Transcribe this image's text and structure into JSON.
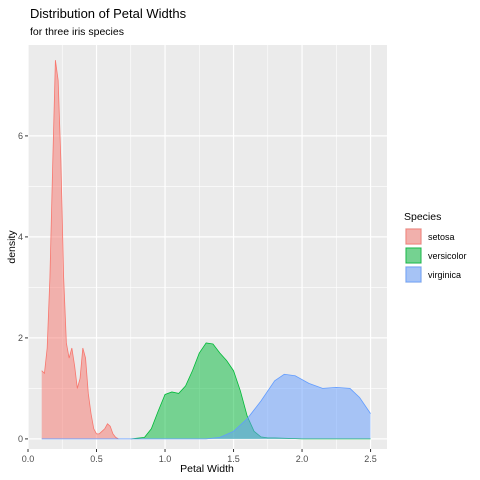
{
  "chart_data": {
    "type": "area",
    "title": "Distribution of Petal Widths",
    "subtitle": "for three iris species",
    "xlabel": "Petal Width",
    "ylabel": "density",
    "xlim": [
      0.0,
      2.62
    ],
    "ylim": [
      -0.2,
      7.8
    ],
    "x_ticks": [
      0.0,
      0.5,
      1.0,
      1.5,
      2.0,
      2.5
    ],
    "x_tick_labels": [
      "0.0",
      "0.5",
      "1.0",
      "1.5",
      "2.0",
      "2.5"
    ],
    "y_ticks": [
      0,
      2,
      4,
      6
    ],
    "y_tick_labels": [
      "0",
      "2",
      "4",
      "6"
    ],
    "grid": true,
    "background": "#ebebeb",
    "legend": {
      "title": "Species",
      "placement": "right"
    },
    "series": [
      {
        "name": "setosa",
        "fill": "#f8766d",
        "points": [
          [
            0.1,
            1.35
          ],
          [
            0.12,
            1.3
          ],
          [
            0.14,
            1.8
          ],
          [
            0.16,
            3.2
          ],
          [
            0.18,
            5.4
          ],
          [
            0.2,
            7.5
          ],
          [
            0.22,
            7.1
          ],
          [
            0.24,
            5.5
          ],
          [
            0.26,
            3.2
          ],
          [
            0.28,
            1.9
          ],
          [
            0.3,
            1.6
          ],
          [
            0.32,
            1.8
          ],
          [
            0.34,
            1.45
          ],
          [
            0.36,
            1.0
          ],
          [
            0.38,
            1.2
          ],
          [
            0.4,
            1.8
          ],
          [
            0.42,
            1.6
          ],
          [
            0.44,
            0.9
          ],
          [
            0.46,
            0.5
          ],
          [
            0.48,
            0.2
          ],
          [
            0.5,
            0.1
          ],
          [
            0.52,
            0.1
          ],
          [
            0.54,
            0.15
          ],
          [
            0.56,
            0.2
          ],
          [
            0.58,
            0.3
          ],
          [
            0.6,
            0.25
          ],
          [
            0.62,
            0.1
          ],
          [
            0.64,
            0.03
          ],
          [
            0.66,
            0.0
          ]
        ]
      },
      {
        "name": "versicolor",
        "fill": "#00ba38",
        "points": [
          [
            0.75,
            0.0
          ],
          [
            0.85,
            0.03
          ],
          [
            0.9,
            0.2
          ],
          [
            0.95,
            0.55
          ],
          [
            1.0,
            0.88
          ],
          [
            1.05,
            0.93
          ],
          [
            1.1,
            0.9
          ],
          [
            1.15,
            1.05
          ],
          [
            1.2,
            1.35
          ],
          [
            1.25,
            1.7
          ],
          [
            1.3,
            1.9
          ],
          [
            1.35,
            1.88
          ],
          [
            1.4,
            1.7
          ],
          [
            1.45,
            1.55
          ],
          [
            1.5,
            1.35
          ],
          [
            1.55,
            0.95
          ],
          [
            1.6,
            0.45
          ],
          [
            1.65,
            0.15
          ],
          [
            1.7,
            0.04
          ],
          [
            1.75,
            0.02
          ],
          [
            1.8,
            0.02
          ],
          [
            1.9,
            0.01
          ],
          [
            2.0,
            0.0
          ],
          [
            2.5,
            0.0
          ]
        ]
      },
      {
        "name": "virginica",
        "fill": "#619cff",
        "points": [
          [
            0.1,
            0.0
          ],
          [
            1.3,
            0.0
          ],
          [
            1.4,
            0.03
          ],
          [
            1.5,
            0.15
          ],
          [
            1.6,
            0.4
          ],
          [
            1.7,
            0.75
          ],
          [
            1.8,
            1.15
          ],
          [
            1.87,
            1.28
          ],
          [
            1.95,
            1.25
          ],
          [
            2.05,
            1.1
          ],
          [
            2.15,
            1.0
          ],
          [
            2.25,
            1.02
          ],
          [
            2.35,
            1.0
          ],
          [
            2.42,
            0.82
          ],
          [
            2.5,
            0.5
          ]
        ]
      }
    ]
  }
}
